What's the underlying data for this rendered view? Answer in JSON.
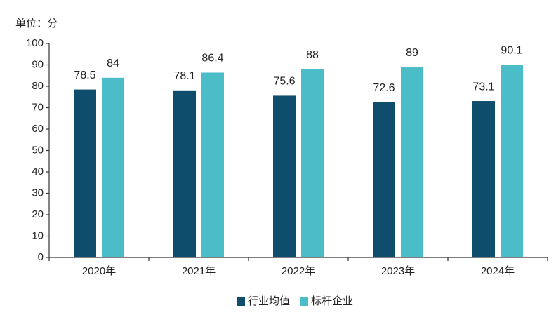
{
  "chart_data": {
    "type": "bar",
    "y_axis_label": "单位：分",
    "categories": [
      "2020年",
      "2021年",
      "2022年",
      "2023年",
      "2024年"
    ],
    "series": [
      {
        "name": "行业均值",
        "color": "#0e4d6b",
        "values": [
          78.5,
          78.1,
          75.6,
          72.6,
          73.1
        ]
      },
      {
        "name": "标杆企业",
        "color": "#4bbdc9",
        "values": [
          84,
          86.4,
          88,
          89,
          90.1
        ]
      }
    ],
    "ylim": [
      0,
      100
    ],
    "yticks": [
      0,
      10,
      20,
      30,
      40,
      50,
      60,
      70,
      80,
      90,
      100
    ],
    "grid": false,
    "legend": "bottom"
  }
}
